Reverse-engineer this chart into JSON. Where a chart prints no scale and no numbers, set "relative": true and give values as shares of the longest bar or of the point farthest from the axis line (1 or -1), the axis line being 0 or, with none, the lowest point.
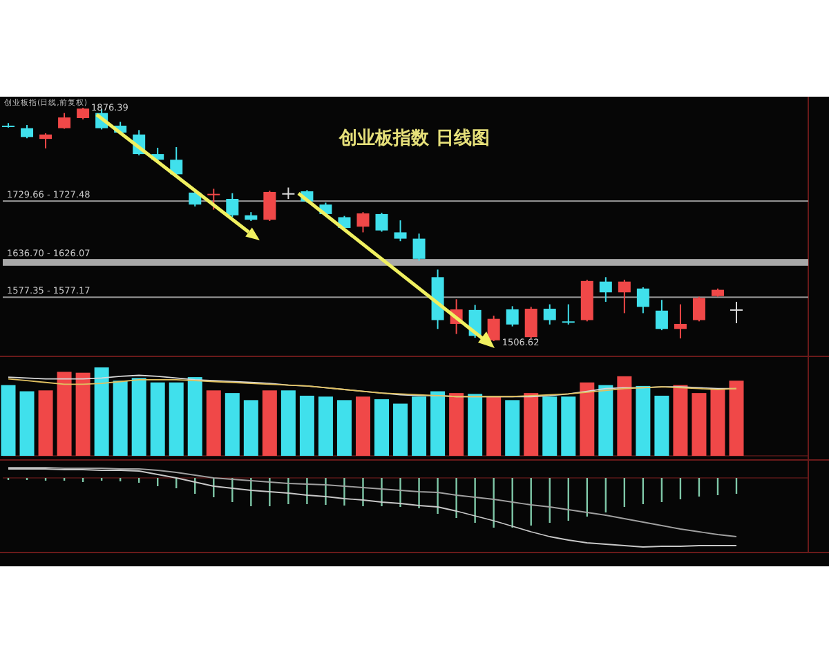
{
  "chart_data": [
    {
      "type": "candlestick",
      "title": "创业板指数 日线图",
      "subtitle": "创业板指(日线,前复权)",
      "categories": [
        null,
        null,
        null,
        null,
        null,
        null,
        null,
        null,
        null,
        null,
        null,
        null,
        null,
        null,
        null,
        null,
        null,
        null,
        null,
        null,
        null,
        null,
        null,
        null,
        null,
        null,
        null,
        null,
        null,
        null,
        null,
        null,
        null,
        null,
        null,
        null,
        null,
        null,
        null,
        null
      ],
      "ohlc": [
        [
          1848,
          1852,
          1845,
          1847
        ],
        [
          1844,
          1849,
          1828,
          1830
        ],
        [
          1827,
          1836,
          1812,
          1834
        ],
        [
          1844,
          1868,
          1843,
          1861
        ],
        [
          1860,
          1876.39,
          1858,
          1875
        ],
        [
          1868,
          1874,
          1842,
          1844
        ],
        [
          1848,
          1854,
          1835,
          1837
        ],
        [
          1834,
          1841,
          1801,
          1803
        ],
        [
          1803,
          1813,
          1792,
          1794
        ],
        [
          1794,
          1814,
          1770,
          1771
        ],
        [
          1742,
          1745,
          1720,
          1723
        ],
        [
          1739,
          1748,
          1715,
          1740
        ],
        [
          1732,
          1741,
          1703,
          1706
        ],
        [
          1706,
          1711,
          1697,
          1699
        ],
        [
          1699,
          1745,
          1697,
          1743
        ],
        [
          1740,
          1750,
          1732,
          1741
        ],
        [
          1744,
          1746,
          1726,
          1728
        ],
        [
          1723,
          1726,
          1705,
          1708
        ],
        [
          1703,
          1705,
          1684,
          1686
        ],
        [
          1688,
          1711,
          1679,
          1709
        ],
        [
          1708,
          1710,
          1680,
          1682
        ],
        [
          1679,
          1698,
          1665,
          1669
        ],
        [
          1669,
          1677,
          1634,
          1637
        ],
        [
          1608,
          1620,
          1526,
          1540
        ],
        [
          1534,
          1573,
          1518,
          1557
        ],
        [
          1556,
          1564,
          1512,
          1515
        ],
        [
          1508,
          1547,
          1506.62,
          1542
        ],
        [
          1557,
          1562,
          1530,
          1533
        ],
        [
          1513,
          1561,
          1511,
          1558
        ],
        [
          1558,
          1565,
          1533,
          1540
        ],
        [
          1538,
          1565,
          1533,
          1537
        ],
        [
          1540,
          1604,
          1538,
          1602
        ],
        [
          1601,
          1608,
          1569,
          1584
        ],
        [
          1584,
          1604,
          1551,
          1601
        ],
        [
          1590,
          1592,
          1551,
          1561
        ],
        [
          1555,
          1572,
          1524,
          1526
        ],
        [
          1526,
          1565,
          1511,
          1534
        ],
        [
          1540,
          1577,
          1538,
          1575
        ],
        [
          1578,
          1590,
          1577,
          1588
        ],
        [
          1557,
          1569,
          1535,
          1557
        ]
      ],
      "colors": [
        "#40e0ec",
        "#40e0ec",
        "#f04848",
        "#f04848",
        "#f04848",
        "#40e0ec",
        "#40e0ec",
        "#40e0ec",
        "#40e0ec",
        "#40e0ec",
        "#40e0ec",
        "#f04848",
        "#40e0ec",
        "#40e0ec",
        "#f04848",
        "#d8d8d8",
        "#40e0ec",
        "#40e0ec",
        "#40e0ec",
        "#f04848",
        "#40e0ec",
        "#40e0ec",
        "#40e0ec",
        "#40e0ec",
        "#f04848",
        "#40e0ec",
        "#f04848",
        "#40e0ec",
        "#f04848",
        "#40e0ec",
        "#40e0ec",
        "#f04848",
        "#40e0ec",
        "#f04848",
        "#40e0ec",
        "#40e0ec",
        "#f04848",
        "#f04848",
        "#f04848",
        "#d8d8d8"
      ],
      "bands": [
        {
          "axis": "y",
          "from": 1727.48,
          "to": 1729.66,
          "label": "1729.66 - 1727.48",
          "color": "#9a9a9a"
        },
        {
          "axis": "y",
          "from": 1626.07,
          "to": 1636.7,
          "label": "1636.70 - 1626.07",
          "color": "#a8a8a8"
        },
        {
          "axis": "y",
          "from": 1577.17,
          "to": 1577.35,
          "label": "1577.35 - 1577.17",
          "color": "#9a9a9a"
        }
      ],
      "annotations": [
        {
          "text": "1876.39",
          "y": 1876.39
        },
        {
          "text": "1506.62",
          "y": 1506.62
        }
      ]
    },
    {
      "type": "bar",
      "relative": true,
      "categories": [
        null,
        null,
        null,
        null,
        null,
        null,
        null,
        null,
        null,
        null,
        null,
        null,
        null,
        null,
        null,
        null,
        null,
        null,
        null,
        null,
        null,
        null,
        null,
        null,
        null,
        null,
        null,
        null,
        null,
        null,
        null,
        null,
        null,
        null,
        null,
        null,
        null,
        null,
        null,
        null
      ],
      "series": [
        {
          "type": "bar",
          "values": [
            0.8,
            0.73,
            0.74,
            0.95,
            0.94,
            1,
            0.85,
            0.88,
            0.83,
            0.83,
            0.89,
            0.74,
            0.71,
            0.63,
            0.74,
            0.74,
            0.68,
            0.67,
            0.63,
            0.67,
            0.64,
            0.59,
            0.67,
            0.73,
            0.71,
            0.7,
            0.67,
            0.63,
            0.71,
            0.67,
            0.67,
            0.83,
            0.8,
            0.9,
            0.79,
            0.68,
            0.8,
            0.71,
            0.76,
            0.85
          ],
          "colors": [
            "#40e0ec",
            "#40e0ec",
            "#f04848",
            "#f04848",
            "#f04848",
            "#40e0ec",
            "#40e0ec",
            "#40e0ec",
            "#40e0ec",
            "#40e0ec",
            "#40e0ec",
            "#f04848",
            "#40e0ec",
            "#40e0ec",
            "#f04848",
            "#40e0ec",
            "#40e0ec",
            "#40e0ec",
            "#40e0ec",
            "#f04848",
            "#40e0ec",
            "#40e0ec",
            "#40e0ec",
            "#40e0ec",
            "#f04848",
            "#40e0ec",
            "#f04848",
            "#40e0ec",
            "#f04848",
            "#40e0ec",
            "#40e0ec",
            "#f04848",
            "#40e0ec",
            "#f04848",
            "#40e0ec",
            "#40e0ec",
            "#f04848",
            "#f04848",
            "#f04848",
            "#f04848"
          ]
        },
        {
          "type": "line",
          "color": "#d8d8d8",
          "values": [
            0.89,
            0.88,
            0.87,
            0.87,
            0.87,
            0.88,
            0.9,
            0.91,
            0.9,
            0.88,
            0.86,
            0.85,
            0.84,
            0.83,
            0.82,
            0.8,
            0.79,
            0.77,
            0.75,
            0.73,
            0.71,
            0.69,
            0.68,
            0.68,
            0.67,
            0.67,
            0.67,
            0.67,
            0.67,
            0.68,
            0.7,
            0.73,
            0.76,
            0.77,
            0.77,
            0.78,
            0.78,
            0.77,
            0.76,
            0.76
          ]
        },
        {
          "type": "line",
          "color": "#e0c060",
          "values": [
            0.87,
            0.85,
            0.83,
            0.81,
            0.81,
            0.82,
            0.84,
            0.86,
            0.86,
            0.86,
            0.85,
            0.84,
            0.83,
            0.82,
            0.81,
            0.8,
            0.79,
            0.77,
            0.75,
            0.73,
            0.71,
            0.7,
            0.69,
            0.68,
            0.67,
            0.67,
            0.67,
            0.67,
            0.68,
            0.69,
            0.7,
            0.72,
            0.74,
            0.76,
            0.77,
            0.78,
            0.77,
            0.76,
            0.75,
            0.76
          ]
        }
      ]
    },
    {
      "type": "bar",
      "relative": true,
      "categories": [
        null,
        null,
        null,
        null,
        null,
        null,
        null,
        null,
        null,
        null,
        null,
        null,
        null,
        null,
        null,
        null,
        null,
        null,
        null,
        null,
        null,
        null,
        null,
        null,
        null,
        null,
        null,
        null,
        null,
        null,
        null,
        null,
        null,
        null,
        null,
        null,
        null,
        null,
        null,
        null
      ],
      "series": [
        {
          "type": "bar",
          "color": "#7fc8a8",
          "values": [
            -0.03,
            -0.03,
            -0.04,
            -0.04,
            -0.06,
            -0.04,
            -0.05,
            -0.07,
            -0.12,
            -0.15,
            -0.23,
            -0.28,
            -0.35,
            -0.41,
            -0.41,
            -0.38,
            -0.38,
            -0.39,
            -0.4,
            -0.41,
            -0.41,
            -0.42,
            -0.44,
            -0.52,
            -0.58,
            -0.65,
            -0.72,
            -0.72,
            -0.69,
            -0.65,
            -0.62,
            -0.56,
            -0.5,
            -0.42,
            -0.38,
            -0.35,
            -0.31,
            -0.27,
            -0.25,
            -0.23
          ]
        },
        {
          "type": "line",
          "color": "#c8c8c8",
          "values": [
            0.13,
            0.13,
            0.13,
            0.12,
            0.12,
            0.11,
            0.11,
            0.1,
            0.05,
            0.0,
            -0.06,
            -0.12,
            -0.15,
            -0.18,
            -0.2,
            -0.22,
            -0.25,
            -0.27,
            -0.3,
            -0.32,
            -0.35,
            -0.37,
            -0.4,
            -0.42,
            -0.48,
            -0.55,
            -0.62,
            -0.7,
            -0.78,
            -0.85,
            -0.9,
            -0.94,
            -0.96,
            -0.98,
            -1,
            -0.99,
            -0.99,
            -0.98,
            -0.98,
            -0.98
          ]
        },
        {
          "type": "line",
          "color": "#a0a0a0",
          "values": [
            0.15,
            0.15,
            0.15,
            0.14,
            0.14,
            0.14,
            0.13,
            0.13,
            0.11,
            0.08,
            0.04,
            0,
            -0.02,
            -0.04,
            -0.06,
            -0.08,
            -0.09,
            -0.1,
            -0.12,
            -0.14,
            -0.16,
            -0.18,
            -0.2,
            -0.21,
            -0.25,
            -0.28,
            -0.31,
            -0.35,
            -0.39,
            -0.42,
            -0.46,
            -0.5,
            -0.54,
            -0.59,
            -0.64,
            -0.69,
            -0.74,
            -0.78,
            -0.82,
            -0.85
          ]
        }
      ]
    }
  ]
}
